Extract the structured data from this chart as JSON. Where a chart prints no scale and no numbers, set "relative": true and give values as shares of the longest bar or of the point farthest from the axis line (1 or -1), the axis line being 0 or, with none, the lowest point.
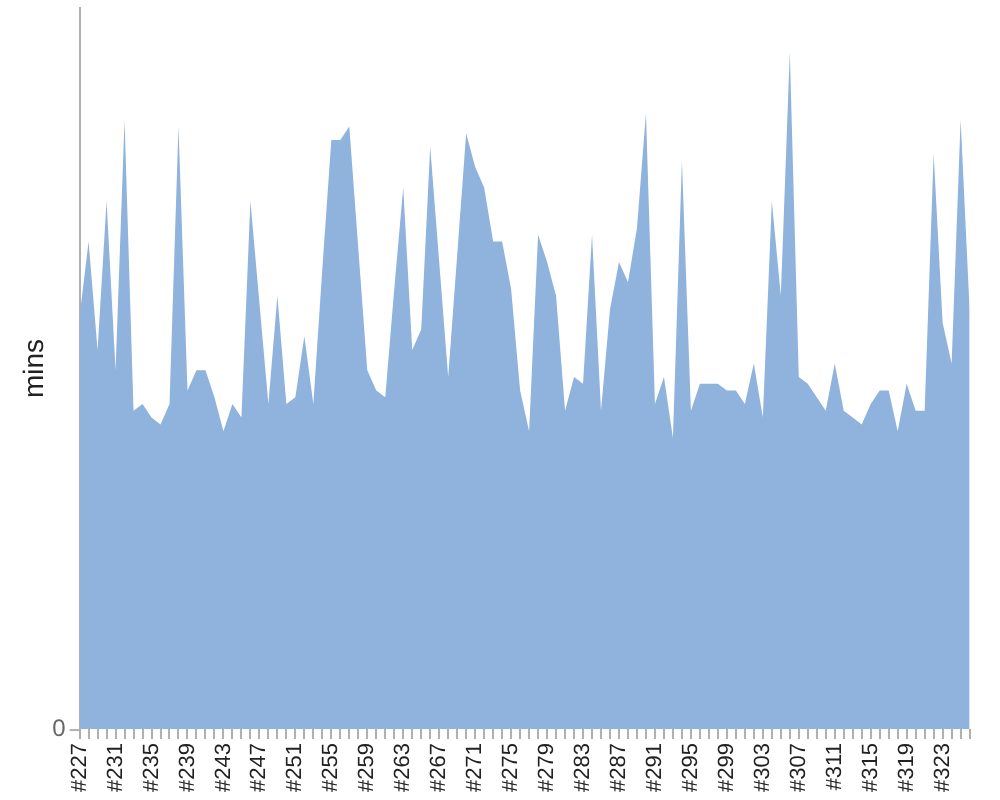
{
  "chart_data": {
    "type": "area",
    "ylabel": "mins",
    "relative": true,
    "annotations": [
      "0"
    ],
    "color": "#8fb3dc",
    "legend": false,
    "marker": "none",
    "categories": [
      "#227",
      null,
      null,
      null,
      "#231",
      null,
      null,
      null,
      "#235",
      null,
      null,
      null,
      "#239",
      null,
      null,
      null,
      "#243",
      null,
      null,
      null,
      "#247",
      null,
      null,
      null,
      "#251",
      null,
      null,
      null,
      "#255",
      null,
      null,
      null,
      "#259",
      null,
      null,
      null,
      "#263",
      null,
      null,
      null,
      "#267",
      null,
      null,
      null,
      "#271",
      null,
      null,
      null,
      "#275",
      null,
      null,
      null,
      "#279",
      null,
      null,
      null,
      "#283",
      null,
      null,
      null,
      "#287",
      null,
      null,
      null,
      "#291",
      null,
      null,
      null,
      "#295",
      null,
      null,
      null,
      "#299",
      null,
      null,
      null,
      "#303",
      null,
      null,
      null,
      "#307",
      null,
      null,
      null,
      "#311",
      null,
      null,
      null,
      "#315",
      null,
      null,
      null,
      "#319",
      null,
      null,
      null,
      "#323",
      null,
      null,
      null
    ],
    "values": [
      0.61,
      0.72,
      0.56,
      0.78,
      0.53,
      0.9,
      0.47,
      0.48,
      0.46,
      0.45,
      0.48,
      0.89,
      0.5,
      0.53,
      0.53,
      0.49,
      0.44,
      0.48,
      0.46,
      0.78,
      0.63,
      0.48,
      0.64,
      0.48,
      0.49,
      0.58,
      0.48,
      0.68,
      0.87,
      0.87,
      0.89,
      0.71,
      0.53,
      0.5,
      0.49,
      0.65,
      0.8,
      0.56,
      0.59,
      0.86,
      0.69,
      0.52,
      0.7,
      0.88,
      0.83,
      0.8,
      0.72,
      0.72,
      0.65,
      0.5,
      0.44,
      0.73,
      0.69,
      0.64,
      0.47,
      0.52,
      0.51,
      0.73,
      0.47,
      0.62,
      0.69,
      0.66,
      0.74,
      0.91,
      0.48,
      0.52,
      0.43,
      0.84,
      0.47,
      0.51,
      0.51,
      0.51,
      0.5,
      0.5,
      0.48,
      0.54,
      0.46,
      0.78,
      0.64,
      1,
      0.52,
      0.51,
      0.49,
      0.47,
      0.54,
      0.47,
      0.46,
      0.45,
      0.48,
      0.5,
      0.5,
      0.44,
      0.51,
      0.47,
      0.47,
      0.85,
      0.6,
      0.54,
      0.9,
      0.62
    ]
  }
}
